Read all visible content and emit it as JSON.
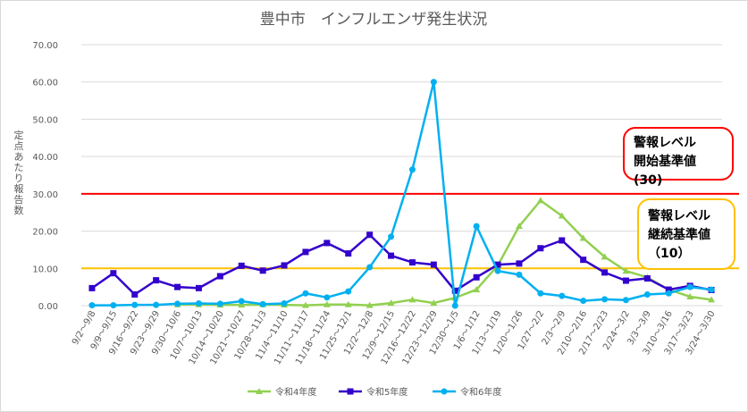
{
  "chart_data": {
    "type": "line",
    "title": "豊中市　インフルエンザ発生状況",
    "ylabel": "定点あたり報告数",
    "ylim": [
      0,
      70
    ],
    "yticks": [
      "0.00",
      "10.00",
      "20.00",
      "30.00",
      "40.00",
      "50.00",
      "60.00",
      "70.00"
    ],
    "categories": [
      "9/2～9/8",
      "9/9～9/15",
      "9/16～9/22",
      "9/23～9/29",
      "9/30～10/6",
      "10/7～10/13",
      "10/14～10/20",
      "10/21～10/27",
      "10/28～11/3",
      "11/4～11/10",
      "11/11～11/17",
      "11/18～11/24",
      "11/25～12/1",
      "12/2～12/8",
      "12/9～12/15",
      "12/16～12/22",
      "12/23～12/29",
      "12/30～1/5",
      "1/6～1/12",
      "1/13～1/19",
      "1/20～1/26",
      "1/27～2/2",
      "2/3～2/9",
      "2/10～2/16",
      "2/17～2/23",
      "2/24～3/2",
      "3/3～3/9",
      "3/10～3/16",
      "3/17～3/23",
      "3/24～3/30"
    ],
    "series": [
      {
        "name": "令和4年度",
        "color": "#92d050",
        "marker": "triangle",
        "values": [
          null,
          null,
          null,
          null,
          0.3,
          0.3,
          0.2,
          0.2,
          0.3,
          0.2,
          0.1,
          0.3,
          0.3,
          0.1,
          0.7,
          1.6,
          0.7,
          2.1,
          4.3,
          10.8,
          21.3,
          28.2,
          24.1,
          18.1,
          13.1,
          9.3,
          7.6,
          4.3,
          2.4,
          1.6
        ]
      },
      {
        "name": "令和5年度",
        "color": "#3300cc",
        "marker": "square",
        "values": [
          4.7,
          8.7,
          3.0,
          6.8,
          5.0,
          4.7,
          7.9,
          10.7,
          9.4,
          10.8,
          14.4,
          16.8,
          14.0,
          19.0,
          13.4,
          11.6,
          11.0,
          4.0,
          7.6,
          11.0,
          11.3,
          15.4,
          17.5,
          12.3,
          8.9,
          6.7,
          7.3,
          4.3,
          5.3,
          4.2
        ]
      },
      {
        "name": "令和6年度",
        "color": "#00b0f0",
        "marker": "circle",
        "values": [
          0.1,
          0.1,
          0.2,
          0.2,
          0.5,
          0.6,
          0.5,
          1.2,
          0.4,
          0.6,
          3.3,
          2.2,
          3.8,
          10.3,
          18.5,
          36.5,
          60.0,
          0.0,
          21.3,
          9.3,
          8.3,
          3.3,
          2.6,
          1.3,
          1.7,
          1.5,
          3.0,
          3.3,
          5.0,
          4.3
        ]
      }
    ],
    "reference_lines": [
      {
        "name": "警報レベル 開始基準値",
        "value": 30,
        "color": "#ff0000"
      },
      {
        "name": "警報レベル 継続基準値",
        "value": 10,
        "color": "#ffc000"
      }
    ],
    "legend_position": "bottom"
  },
  "annotations": {
    "start": {
      "line1": "警報レベル",
      "line2": "開始基準値(30)"
    },
    "continue": {
      "line1": "警報レベル",
      "line2": "継続基準値",
      "line3": "（10）"
    }
  }
}
